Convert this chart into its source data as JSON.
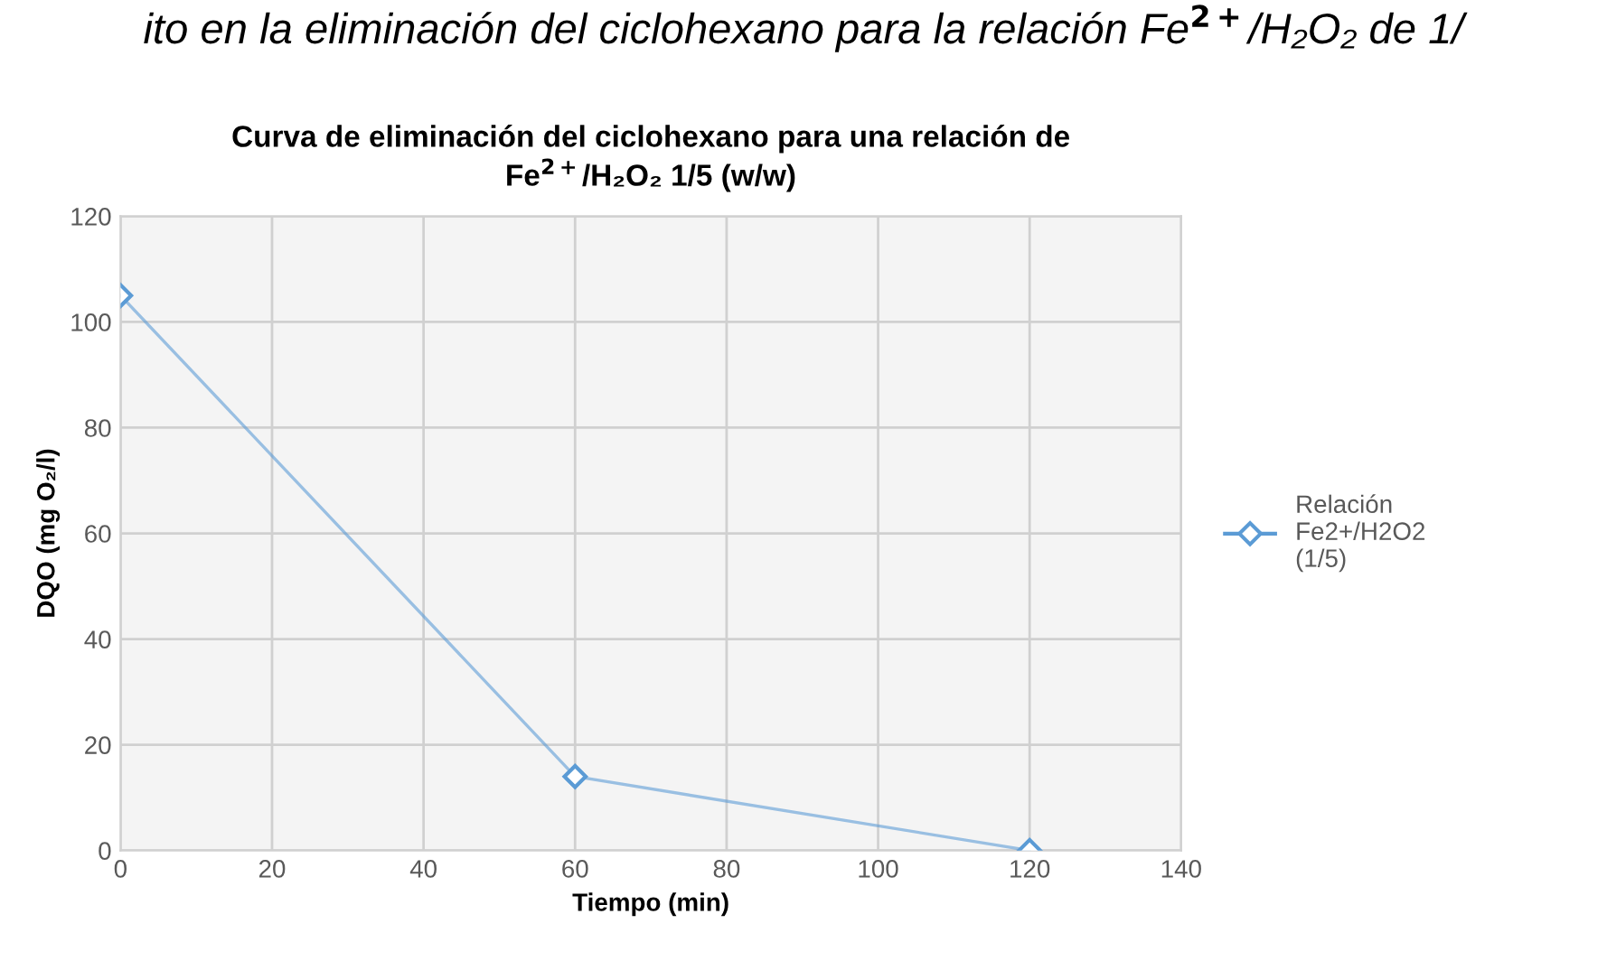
{
  "chart_data": {
    "type": "line",
    "title": "Curva de eliminación del ciclohexano para una relación de\nFe$^{2+}$/H₂O₂ 1/5 (w/w)",
    "xlabel": "Tiempo (min)",
    "ylabel": "DQO (mg O₂/l)",
    "annotations": [
      "ito en la eliminación del ciclohexano para la relación Fe$^{2+}$/H₂O₂ de 1/"
    ],
    "x": [
      0,
      60,
      120
    ],
    "series": [
      {
        "name": "Relación Fe2+/H2O2 (1/5)",
        "color": "#5b9bd5",
        "values": [
          105,
          14,
          0
        ]
      }
    ],
    "xlim": [
      0,
      140
    ],
    "xticks": [
      0,
      20,
      40,
      60,
      80,
      100,
      120,
      140
    ],
    "ylim": [
      0,
      120
    ],
    "yticks": [
      0,
      20,
      40,
      60,
      80,
      100,
      120
    ],
    "grid": true,
    "legend": "right",
    "marker": "diamond",
    "line_style": "solid"
  }
}
